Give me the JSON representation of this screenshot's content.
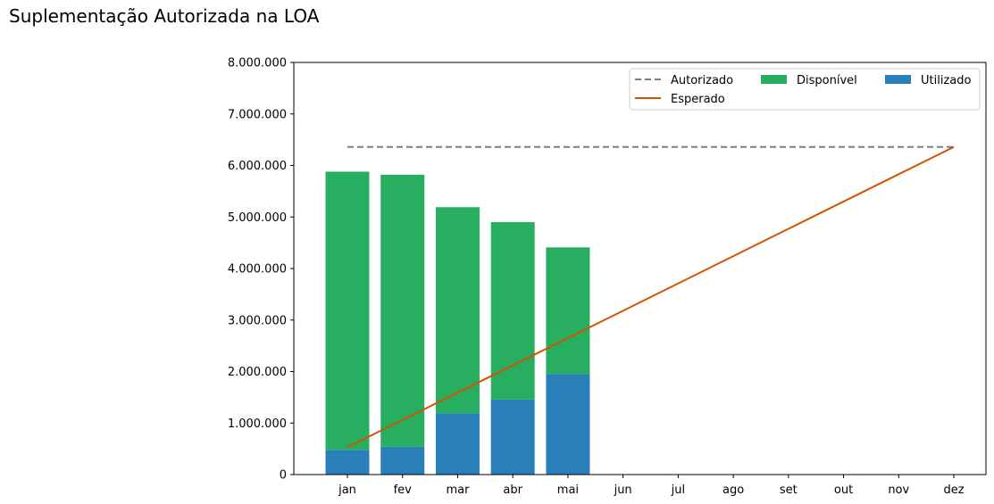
{
  "chart_data": {
    "type": "bar",
    "title": "Suplementação Autorizada na LOA",
    "categories": [
      "jan",
      "fev",
      "mar",
      "abr",
      "mai",
      "jun",
      "jul",
      "ago",
      "set",
      "out",
      "nov",
      "dez"
    ],
    "ylim": [
      0,
      8000000
    ],
    "yticks": [
      0,
      1000000,
      2000000,
      3000000,
      4000000,
      5000000,
      6000000,
      7000000,
      8000000
    ],
    "ytick_labels": [
      "0",
      "1.000.000",
      "2.000.000",
      "3.000.000",
      "4.000.000",
      "5.000.000",
      "6.000.000",
      "7.000.000",
      "8.000.000"
    ],
    "xlabel": "",
    "ylabel": "",
    "grid": false,
    "legend_position": "top-right",
    "series": [
      {
        "name": "Utilizado",
        "kind": "bar",
        "color": "#2980b9",
        "values": [
          480000,
          540000,
          1190000,
          1460000,
          1950000,
          null,
          null,
          null,
          null,
          null,
          null,
          null
        ]
      },
      {
        "name": "Disponível",
        "kind": "bar-stacked",
        "color": "#27ae60",
        "values": [
          5400000,
          5280000,
          4000000,
          3440000,
          2460000,
          null,
          null,
          null,
          null,
          null,
          null,
          null
        ]
      },
      {
        "name": "Autorizado",
        "kind": "line-dashed",
        "color": "#708090",
        "values": [
          6360000,
          6360000,
          6360000,
          6360000,
          6360000,
          6360000,
          6360000,
          6360000,
          6360000,
          6360000,
          6360000,
          6360000
        ]
      },
      {
        "name": "Esperado",
        "kind": "line",
        "color": "#d35400",
        "values": [
          530000,
          1060000,
          1590000,
          2120000,
          2650000,
          3180000,
          3710000,
          4240000,
          4770000,
          5300000,
          5830000,
          6360000
        ]
      }
    ],
    "legend_order": [
      "Autorizado",
      "Disponível",
      "Utilizado",
      "Esperado"
    ]
  }
}
